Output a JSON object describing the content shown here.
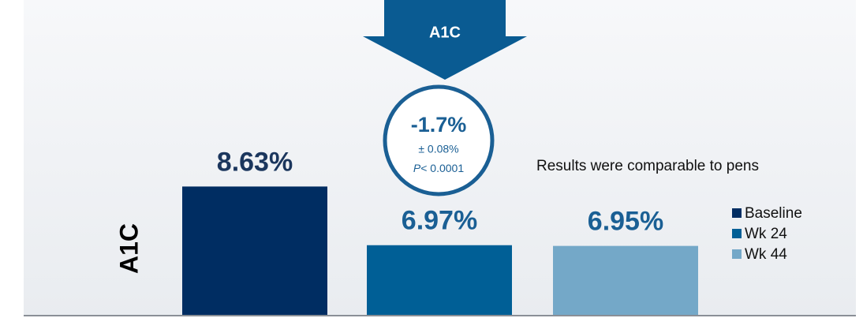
{
  "chart_data": {
    "type": "bar",
    "title": "A1C",
    "y_label": "A1C",
    "categories": [
      "Baseline",
      "Wk 24",
      "Wk 44"
    ],
    "values": [
      8.63,
      6.97,
      6.95
    ],
    "value_labels": [
      "8.63%",
      "6.97%",
      "6.95%"
    ],
    "colors": [
      "#002d62",
      "#005f96",
      "#74a8c8"
    ],
    "ylim": [
      5,
      10
    ],
    "annotation": {
      "change": "-1.7%",
      "error": "± 0.08%",
      "p_label": "P",
      "p_value": "< 0.0001"
    },
    "note": "Results were comparable to pens",
    "legend": "right"
  }
}
